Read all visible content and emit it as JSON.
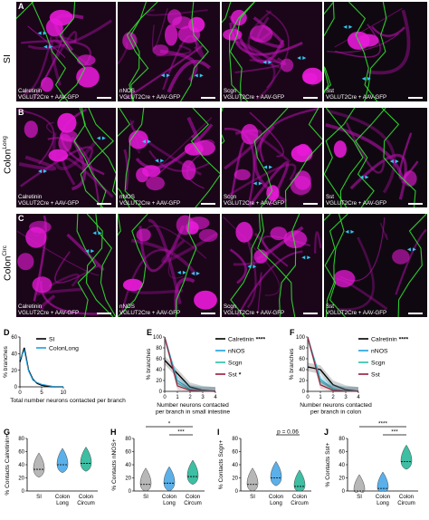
{
  "rows": [
    {
      "id": "SI",
      "label": "SI",
      "sup": ""
    },
    {
      "id": "colon-long",
      "label": "Colon",
      "sup": "Long"
    },
    {
      "id": "colon-circ",
      "label": "Colon",
      "sup": "Circ"
    }
  ],
  "micro_panels": {
    "A": {
      "letter": "A",
      "labels": [
        "Calretinin",
        "nNOS",
        "Scgn",
        "Sst"
      ],
      "sub": "VGLUT2Cre + AAV-GFP"
    },
    "B": {
      "letter": "B",
      "labels": [
        "Calretinin",
        "nNOS",
        "Scgn",
        "Sst"
      ],
      "sub": "VGLUT2Cre + AAV-GFP"
    },
    "C": {
      "letter": "C",
      "labels": [
        "Calretinin",
        "nNOS",
        "Scgn",
        "Sst"
      ],
      "sub": "VGLUT2Cre + AAV-GFP"
    }
  },
  "colors": {
    "magenta": "#e81ad8",
    "green": "#30e030",
    "black": "#000000",
    "blue": "#1e9fe0",
    "teal": "#2abfa8",
    "purple": "#7a3b9e",
    "darkred": "#9a1a3a",
    "violin_gray": "#b0b0b0",
    "violin_blue": "#4aa8e8",
    "violin_green": "#2ab89a"
  },
  "panel_D": {
    "letter": "D",
    "ylabel": "% branches",
    "xlabel": "Total number neurons contacted per branch",
    "yticks": [
      "0",
      "20",
      "40",
      "60"
    ],
    "xticks": [
      "0",
      "5",
      "10"
    ],
    "legend": [
      {
        "name": "SI",
        "color": "#000000"
      },
      {
        "name": "ColonLong",
        "color": "#1e9fe0"
      }
    ]
  },
  "panel_E": {
    "letter": "E",
    "ylabel": "% branches",
    "xlabel": "Number neurons contacted\nper branch in small intestine",
    "yticks": [
      "0",
      "20",
      "40",
      "60",
      "80",
      "100"
    ],
    "xticks": [
      "0",
      "1",
      "2",
      "3",
      "4"
    ],
    "legend": [
      {
        "name": "Calretinin",
        "sig": "****",
        "color": "#000000"
      },
      {
        "name": "nNOS",
        "sig": "",
        "color": "#1e9fe0"
      },
      {
        "name": "Scgn",
        "sig": "",
        "color": "#2abfa8"
      },
      {
        "name": "Sst",
        "sig": "*",
        "color": "#9a1a3a"
      }
    ]
  },
  "panel_F": {
    "letter": "F",
    "ylabel": "% branches",
    "xlabel": "Number neurons contacted\nper branch in colon",
    "yticks": [
      "0",
      "20",
      "40",
      "60",
      "80",
      "100"
    ],
    "xticks": [
      "0",
      "1",
      "2",
      "3",
      "4"
    ],
    "legend": [
      {
        "name": "Calretinin",
        "sig": "****",
        "color": "#000000"
      },
      {
        "name": "nNOS",
        "sig": "",
        "color": "#1e9fe0"
      },
      {
        "name": "Scgn",
        "sig": "",
        "color": "#2abfa8"
      },
      {
        "name": "Sst",
        "sig": "",
        "color": "#9a1a3a"
      }
    ]
  },
  "chart_data": [
    {
      "type": "line",
      "panel": "D",
      "x": [
        0,
        1,
        2,
        3,
        4,
        5,
        6,
        7,
        8,
        9,
        10
      ],
      "series": [
        {
          "name": "SI",
          "values": [
            30,
            47,
            20,
            9,
            4,
            2,
            1,
            0.5,
            0,
            0,
            0
          ]
        },
        {
          "name": "ColonLong",
          "values": [
            33,
            44,
            19,
            8,
            5,
            3,
            2,
            1,
            0,
            0,
            0
          ]
        }
      ],
      "xlabel": "Total number neurons contacted per branch",
      "ylabel": "% branches",
      "ylim": [
        0,
        60
      ]
    },
    {
      "type": "line",
      "panel": "E",
      "x": [
        0,
        1,
        2,
        3,
        4
      ],
      "series": [
        {
          "name": "Calretinin",
          "values": [
            57,
            33,
            8,
            2,
            0
          ]
        },
        {
          "name": "nNOS",
          "values": [
            100,
            20,
            4,
            1,
            0
          ]
        },
        {
          "name": "Scgn",
          "values": [
            100,
            15,
            3,
            1,
            0
          ]
        },
        {
          "name": "Sst",
          "values": [
            100,
            10,
            2,
            0,
            0
          ]
        }
      ],
      "xlabel": "Number neurons contacted per branch in small intestine",
      "ylabel": "% branches",
      "ylim": [
        0,
        100
      ]
    },
    {
      "type": "line",
      "panel": "F",
      "x": [
        0,
        1,
        2,
        3,
        4
      ],
      "series": [
        {
          "name": "Calretinin",
          "values": [
            45,
            40,
            12,
            3,
            0
          ]
        },
        {
          "name": "nNOS",
          "values": [
            100,
            22,
            5,
            1,
            0
          ]
        },
        {
          "name": "Scgn",
          "values": [
            100,
            18,
            4,
            1,
            0
          ]
        },
        {
          "name": "Sst",
          "values": [
            100,
            12,
            2,
            0,
            0
          ]
        }
      ],
      "xlabel": "Number neurons contacted per branch in colon",
      "ylabel": "% branches",
      "ylim": [
        0,
        100
      ]
    },
    {
      "type": "violin",
      "panel": "G",
      "ylabel": "% Contacts Calretinin+",
      "categories": [
        "SI",
        "Colon\nLong",
        "Colon\nCircum"
      ],
      "medians": [
        33,
        40,
        42
      ],
      "ylim": [
        0,
        80
      ],
      "yticks": [
        "0",
        "20",
        "40",
        "60",
        "80"
      ],
      "sig": []
    },
    {
      "type": "violin",
      "panel": "H",
      "ylabel": "% Contacts nNOS+",
      "categories": [
        "SI",
        "Colon\nLong",
        "Colon\nCircum"
      ],
      "medians": [
        10,
        12,
        22
      ],
      "ylim": [
        0,
        80
      ],
      "yticks": [
        "0",
        "20",
        "40",
        "60",
        "80"
      ],
      "sig": [
        {
          "from": 0,
          "to": 2,
          "label": "*"
        },
        {
          "from": 1,
          "to": 2,
          "label": "***"
        }
      ]
    },
    {
      "type": "violin",
      "panel": "I",
      "ylabel": "% Contacts Scgn+",
      "categories": [
        "SI",
        "Colon\nLong",
        "Colon\nCircum"
      ],
      "medians": [
        10,
        20,
        7
      ],
      "ylim": [
        0,
        80
      ],
      "yticks": [
        "0",
        "20",
        "40",
        "60",
        "80"
      ],
      "sig": [
        {
          "from": 1,
          "to": 2,
          "label": "p = 0.06"
        }
      ]
    },
    {
      "type": "violin",
      "panel": "J",
      "ylabel": "% Contacts Sst+",
      "categories": [
        "SI",
        "Colon\nLong",
        "Colon\nCircum"
      ],
      "medians": [
        0,
        4,
        45
      ],
      "ylim": [
        0,
        80
      ],
      "yticks": [
        "0",
        "20",
        "40",
        "60",
        "80"
      ],
      "sig": [
        {
          "from": 0,
          "to": 2,
          "label": "****"
        },
        {
          "from": 1,
          "to": 2,
          "label": "***"
        }
      ]
    }
  ]
}
